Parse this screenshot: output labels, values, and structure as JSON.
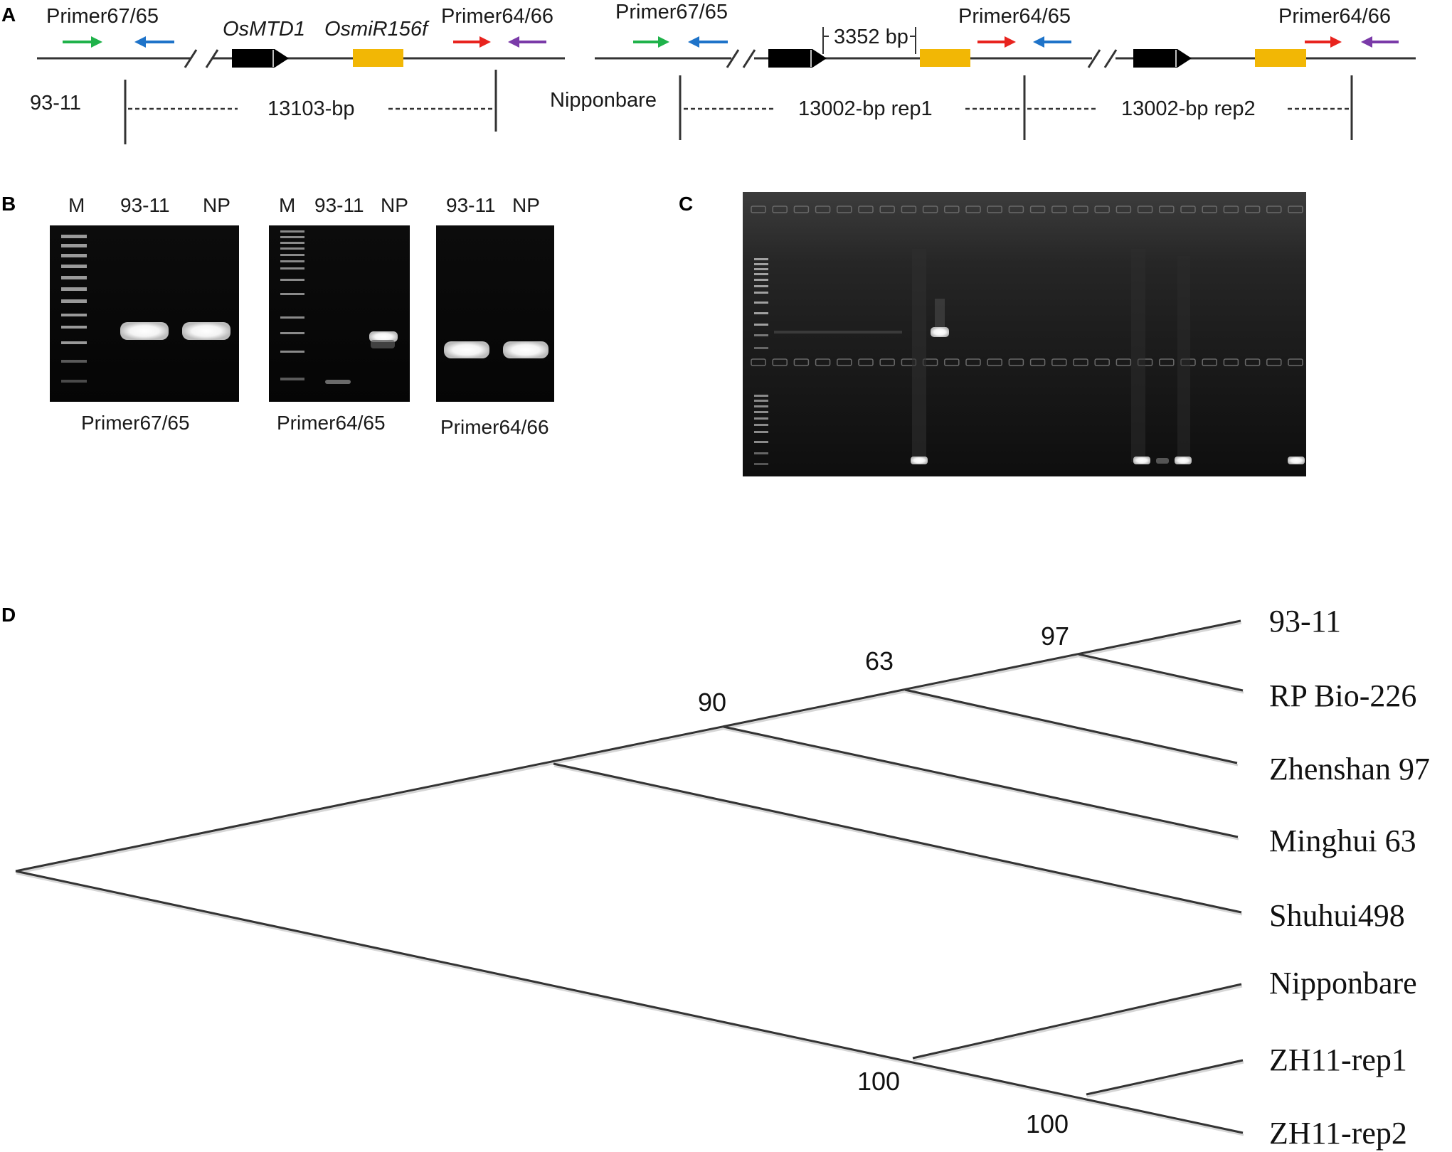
{
  "panels": {
    "a": "A",
    "b": "B",
    "c": "C",
    "d": "D"
  },
  "panelA": {
    "left": {
      "primer_left": "Primer67/65",
      "gene1": "OsMTD1",
      "gene2": "OsmiR156f",
      "primer_right": "Primer64/66",
      "strain": "93-11",
      "length": "13103-bp"
    },
    "right": {
      "primer_left": "Primer67/65",
      "spacing": "3352 bp",
      "primer_mid": "Primer64/65",
      "primer_right": "Primer64/66",
      "strain": "Nipponbare",
      "rep1": "13002-bp rep1",
      "rep2": "13002-bp rep2"
    },
    "arrow_colors": {
      "green": "#1fb24a",
      "blue": "#1e73c9",
      "red": "#e8231e",
      "purple": "#7a3aa8",
      "gene_black": "#000000",
      "gene_yellow": "#f2b705"
    }
  },
  "panelB": {
    "gel1": {
      "lanes": [
        "M",
        "93-11",
        "NP"
      ],
      "caption": "Primer67/65"
    },
    "gel2": {
      "lanes": [
        "M",
        "93-11",
        "NP"
      ],
      "caption": "Primer64/65"
    },
    "gel3": {
      "lanes": [
        "93-11",
        "NP"
      ],
      "caption": "Primer64/66"
    }
  },
  "panelD": {
    "taxa": [
      "93-11",
      "RP Bio-226",
      "Zhenshan 97",
      "Minghui 63",
      "Shuhui498",
      "Nipponbare",
      "ZH11-rep1",
      "ZH11-rep2"
    ],
    "bootstrap": {
      "b97": "97",
      "b63": "63",
      "b90": "90",
      "b100a": "100",
      "b100b": "100"
    }
  }
}
